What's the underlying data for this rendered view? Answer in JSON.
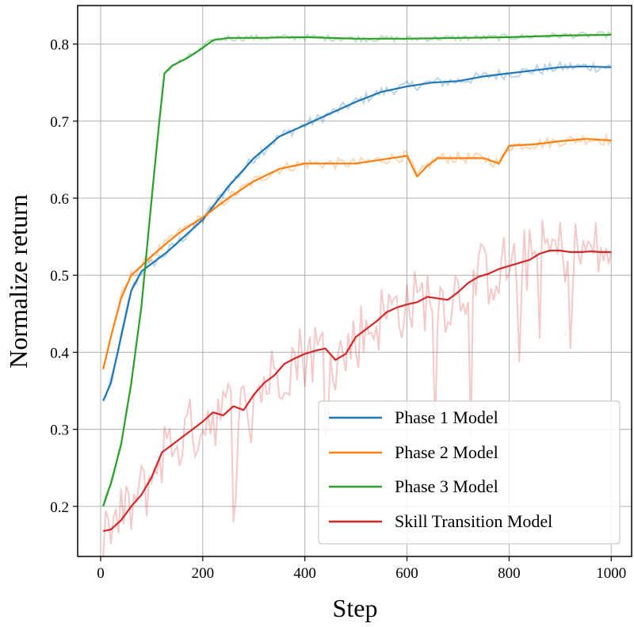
{
  "chart_data": {
    "type": "line",
    "title": "",
    "xlabel": "Step",
    "ylabel": "Normalize return",
    "xlim": [
      -45,
      1040
    ],
    "ylim": [
      0.135,
      0.85
    ],
    "xticks": [
      0,
      200,
      400,
      600,
      800,
      1000
    ],
    "yticks": [
      0.2,
      0.3,
      0.4,
      0.5,
      0.6,
      0.7,
      0.8
    ],
    "xtick_labels": [
      "0",
      "200",
      "400",
      "600",
      "800",
      "1000"
    ],
    "ytick_labels": [
      "0.2",
      "0.3",
      "0.4",
      "0.5",
      "0.6",
      "0.7",
      "0.8"
    ],
    "grid": true,
    "legend_position": "lower-right",
    "series": [
      {
        "name": "Phase 1 Model",
        "color": "#1f77b4",
        "x": [
          5,
          20,
          40,
          60,
          80,
          100,
          130,
          160,
          200,
          250,
          300,
          350,
          400,
          450,
          500,
          550,
          600,
          650,
          700,
          750,
          800,
          850,
          900,
          950,
          1000
        ],
        "y": [
          0.337,
          0.36,
          0.42,
          0.48,
          0.505,
          0.515,
          0.53,
          0.548,
          0.572,
          0.615,
          0.652,
          0.68,
          0.695,
          0.71,
          0.725,
          0.738,
          0.745,
          0.75,
          0.752,
          0.758,
          0.762,
          0.766,
          0.77,
          0.771,
          0.77
        ]
      },
      {
        "name": "Phase 2 Model",
        "color": "#ff7f0e",
        "x": [
          5,
          20,
          40,
          60,
          80,
          100,
          130,
          160,
          200,
          250,
          300,
          350,
          400,
          450,
          500,
          550,
          600,
          620,
          640,
          660,
          700,
          750,
          780,
          800,
          850,
          900,
          950,
          1000
        ],
        "y": [
          0.378,
          0.42,
          0.47,
          0.5,
          0.512,
          0.525,
          0.542,
          0.558,
          0.575,
          0.6,
          0.622,
          0.638,
          0.645,
          0.645,
          0.645,
          0.65,
          0.655,
          0.628,
          0.642,
          0.652,
          0.652,
          0.652,
          0.645,
          0.668,
          0.67,
          0.674,
          0.677,
          0.675
        ]
      },
      {
        "name": "Phase 3 Model",
        "color": "#2ca02c",
        "x": [
          5,
          20,
          40,
          60,
          80,
          100,
          115,
          125,
          140,
          170,
          200,
          220,
          250,
          300,
          400,
          500,
          600,
          700,
          800,
          900,
          1000
        ],
        "y": [
          0.2,
          0.23,
          0.28,
          0.36,
          0.46,
          0.6,
          0.7,
          0.762,
          0.772,
          0.782,
          0.795,
          0.805,
          0.808,
          0.808,
          0.809,
          0.807,
          0.807,
          0.808,
          0.809,
          0.811,
          0.812
        ]
      },
      {
        "name": "Skill Transition Model",
        "color": "#d62728",
        "x": [
          5,
          20,
          40,
          60,
          80,
          100,
          120,
          140,
          160,
          180,
          200,
          220,
          240,
          260,
          280,
          300,
          320,
          340,
          360,
          380,
          400,
          420,
          440,
          460,
          480,
          500,
          520,
          540,
          560,
          580,
          600,
          620,
          640,
          660,
          680,
          700,
          720,
          740,
          760,
          780,
          800,
          820,
          840,
          860,
          880,
          900,
          920,
          940,
          960,
          980,
          1000
        ],
        "y": [
          0.168,
          0.17,
          0.182,
          0.2,
          0.215,
          0.238,
          0.27,
          0.28,
          0.29,
          0.3,
          0.31,
          0.322,
          0.318,
          0.33,
          0.325,
          0.345,
          0.36,
          0.37,
          0.385,
          0.392,
          0.398,
          0.402,
          0.405,
          0.39,
          0.398,
          0.42,
          0.43,
          0.44,
          0.452,
          0.458,
          0.462,
          0.465,
          0.472,
          0.47,
          0.468,
          0.478,
          0.49,
          0.498,
          0.502,
          0.508,
          0.512,
          0.516,
          0.52,
          0.528,
          0.532,
          0.532,
          0.53,
          0.53,
          0.531,
          0.53,
          0.53
        ]
      }
    ]
  }
}
